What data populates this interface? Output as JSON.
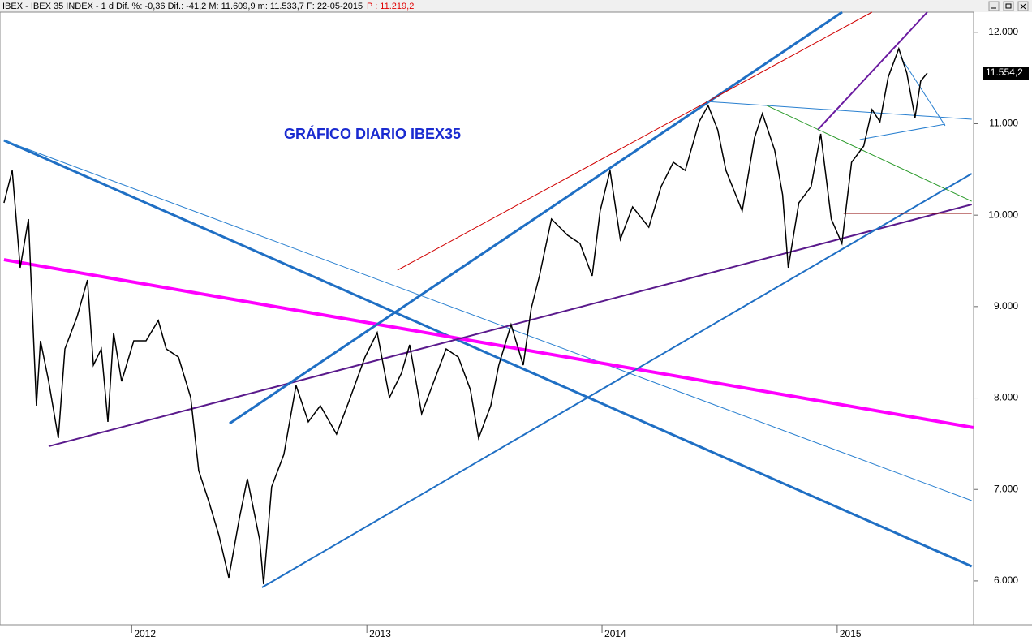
{
  "chart_data": {
    "type": "line",
    "header": "IBEX - IBEX 35 INDEX - 1 d Dif. %: -0,36 Dif.: -41,2 M: 11.609,9 m: 11.533,7 F: 22-05-2015",
    "header_price": "P : 11.219,2",
    "annotation": "GRÁFICO DIARIO IBEX35",
    "x": [
      2011.457,
      2011.492,
      2011.526,
      2011.561,
      2011.595,
      2011.612,
      2011.647,
      2011.688,
      2011.716,
      2011.768,
      2011.812,
      2011.837,
      2011.871,
      2011.899,
      2011.923,
      2011.957,
      2012.009,
      2012.061,
      2012.113,
      2012.147,
      2012.199,
      2012.251,
      2012.285,
      2012.33,
      2012.371,
      2012.413,
      2012.457,
      2012.492,
      2012.544,
      2012.561,
      2012.595,
      2012.647,
      2012.699,
      2012.751,
      2012.802,
      2012.871,
      2012.923,
      2012.992,
      2013.044,
      2013.096,
      2013.147,
      2013.182,
      2013.233,
      2013.285,
      2013.337,
      2013.389,
      2013.44,
      2013.475,
      2013.527,
      2013.561,
      2013.613,
      2013.665,
      2013.699,
      2013.734,
      2013.785,
      2013.854,
      2013.906,
      2013.958,
      2013.992,
      2014.034,
      2014.078,
      2014.13,
      2014.199,
      2014.251,
      2014.303,
      2014.354,
      2014.413,
      2014.451,
      2014.492,
      2014.527,
      2014.596,
      2014.648,
      2014.682,
      2014.734,
      2014.768,
      2014.792,
      2014.837,
      2014.889,
      2014.93,
      2014.975,
      2015.02,
      2015.061,
      2015.113,
      2015.148,
      2015.182,
      2015.217,
      2015.262,
      2015.296,
      2015.331,
      2015.355,
      2015.383
    ],
    "series": [
      {
        "name": "IBEX",
        "color": "#000000",
        "values": [
          10134,
          10489,
          9425,
          9957,
          7916,
          8626,
          8182,
          7561,
          8537,
          8892,
          9291,
          8360,
          8537,
          7739,
          8715,
          8182,
          8626,
          8626,
          8848,
          8537,
          8448,
          8005,
          7206,
          6851,
          6496,
          6035,
          6674,
          7117,
          6452,
          5964,
          7029,
          7384,
          8138,
          7739,
          7916,
          7605,
          7960,
          8448,
          8715,
          8005,
          8271,
          8582,
          7827,
          8182,
          8537,
          8448,
          8093,
          7561,
          7916,
          8360,
          8803,
          8360,
          8981,
          9336,
          9957,
          9780,
          9691,
          9336,
          10046,
          10489,
          9735,
          10090,
          9868,
          10312,
          10578,
          10489,
          11022,
          11199,
          10933,
          10489,
          10046,
          10844,
          11111,
          10711,
          10223,
          9425,
          10134,
          10312,
          10889,
          9957,
          9691,
          10578,
          10756,
          11155,
          11022,
          11510,
          11821,
          11554,
          11066,
          11466,
          11554
        ]
      }
    ],
    "last_price": {
      "value": 11554.2,
      "label": "11.554,2"
    },
    "xlim": [
      2011.44,
      2015.58
    ],
    "xticks": [
      2012,
      2013,
      2014,
      2015
    ],
    "ylim": [
      5520,
      12220
    ],
    "yticks": [
      {
        "value": 6000,
        "label": "6.000"
      },
      {
        "value": 7000,
        "label": "7.000"
      },
      {
        "value": 8000,
        "label": "8.000"
      },
      {
        "value": 9000,
        "label": "9.000"
      },
      {
        "value": 10000,
        "label": "10.000"
      },
      {
        "value": 11000,
        "label": "11.000"
      },
      {
        "value": 12000,
        "label": "12.000"
      }
    ],
    "trend_lines": [
      {
        "x": [
          2011.457,
          2015.572
        ],
        "y": [
          10818,
          6159
        ],
        "color": "#1f6fc4",
        "width": 3
      },
      {
        "x": [
          2011.457,
          2015.572
        ],
        "y": [
          10818,
          6878
        ],
        "color": "#2a80d0",
        "width": 1
      },
      {
        "x": [
          2011.457,
          2015.579
        ],
        "y": [
          9513,
          7677
        ],
        "color": "#ff00ff",
        "width": 4
      },
      {
        "x": [
          2011.647,
          2015.572
        ],
        "y": [
          7472,
          10117
        ],
        "color": "#5a1a8c",
        "width": 2
      },
      {
        "x": [
          2012.416,
          2015.021
        ],
        "y": [
          7721,
          12220
        ],
        "color": "#1f6fc4",
        "width": 3
      },
      {
        "x": [
          2012.554,
          2015.572
        ],
        "y": [
          5928,
          10454
        ],
        "color": "#1f6fc4",
        "width": 2
      },
      {
        "x": [
          2013.13,
          2015.148
        ],
        "y": [
          9398,
          12220
        ],
        "color": "#d00000",
        "width": 1
      },
      {
        "x": [
          2014.917,
          2015.383
        ],
        "y": [
          10933,
          12220
        ],
        "color": "#6a1aa0",
        "width": 2
      },
      {
        "x": [
          2014.441,
          2015.572
        ],
        "y": [
          11244,
          11049
        ],
        "color": "#2a80d0",
        "width": 1
      },
      {
        "x": [
          2014.7,
          2015.572
        ],
        "y": [
          11200,
          10152
        ],
        "color": "#2a9a2a",
        "width": 1
      },
      {
        "x": [
          2015.027,
          2015.572
        ],
        "y": [
          10019,
          10019
        ],
        "color": "#8b0000",
        "width": 1
      },
      {
        "x": [
          2015.269,
          2015.459
        ],
        "y": [
          11732,
          10978
        ],
        "color": "#2a80d0",
        "width": 1
      },
      {
        "x": [
          2015.096,
          2015.459
        ],
        "y": [
          10827,
          10995
        ],
        "color": "#2a80d0",
        "width": 1
      }
    ]
  }
}
